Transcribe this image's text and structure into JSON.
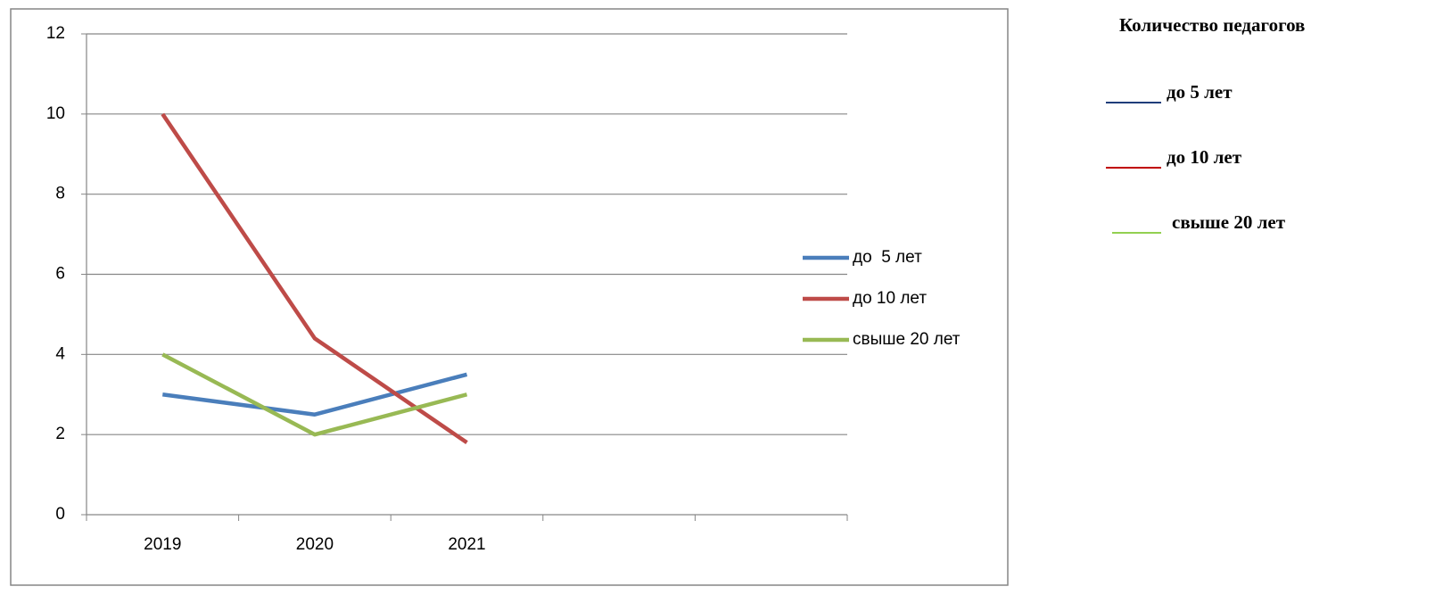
{
  "chart_data": {
    "type": "line",
    "categories": [
      "2019",
      "2020",
      "2021",
      null,
      null
    ],
    "series": [
      {
        "name": "до  5 лет",
        "color": "#4a7ebb",
        "values": [
          3,
          2.5,
          3.5,
          null,
          null
        ]
      },
      {
        "name": "до 10 лет",
        "color": "#be4b48",
        "values": [
          10,
          4.4,
          1.8,
          null,
          null
        ]
      },
      {
        "name": "свыше 20 лет",
        "color": "#98b954",
        "values": [
          4,
          2,
          3,
          null,
          null
        ]
      }
    ],
    "ylim": [
      0,
      12
    ],
    "yticks": [
      0,
      2,
      4,
      6,
      8,
      10,
      12
    ],
    "grid": true,
    "legend": "right"
  },
  "side_panel": {
    "title": "Количество педагогов",
    "items": [
      {
        "label": "до 5 лет",
        "color": "#1f3d7a"
      },
      {
        "label": "до 10 лет",
        "color": "#c00000"
      },
      {
        "label": "свыше 20 лет",
        "color": "#92d050"
      }
    ]
  }
}
